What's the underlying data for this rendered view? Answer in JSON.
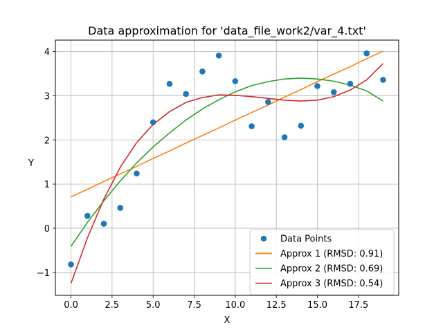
{
  "chart_data": {
    "type": "scatter",
    "title": "Data approximation for 'data_file_work2/var_4.txt'",
    "xlabel": "X",
    "ylabel": "Y",
    "xlim": [
      -0.95,
      19.95
    ],
    "ylim": [
      -1.52,
      4.26
    ],
    "grid": true,
    "legend_position": "lower-right",
    "x_ticks": [
      0.0,
      2.5,
      5.0,
      7.5,
      10.0,
      12.5,
      15.0,
      17.5
    ],
    "x_tick_labels": [
      "0.0",
      "2.5",
      "5.0",
      "7.5",
      "10.0",
      "12.5",
      "15.0",
      "17.5"
    ],
    "y_ticks": [
      -1,
      0,
      1,
      2,
      3,
      4
    ],
    "y_tick_labels": [
      "−1",
      "0",
      "1",
      "2",
      "3",
      "4"
    ],
    "series": [
      {
        "name": "Data Points",
        "kind": "scatter",
        "color": "#1f77b4",
        "x": [
          0,
          1,
          2,
          3,
          4,
          5,
          6,
          7,
          8,
          9,
          10,
          11,
          12,
          13,
          14,
          15,
          16,
          17,
          18,
          19
        ],
        "y": [
          -0.82,
          0.28,
          0.1,
          0.46,
          1.24,
          2.4,
          3.27,
          3.04,
          3.55,
          3.91,
          3.33,
          2.31,
          2.86,
          2.06,
          2.32,
          3.22,
          3.08,
          3.27,
          3.96,
          3.36
        ]
      },
      {
        "name": "Approx 1 (RMSD: 0.91)",
        "kind": "line",
        "color": "#ff7f0e",
        "x": [
          0,
          1,
          2,
          3,
          4,
          5,
          6,
          7,
          8,
          9,
          10,
          11,
          12,
          13,
          14,
          15,
          16,
          17,
          18,
          19
        ],
        "y": [
          0.71,
          0.88,
          1.06,
          1.23,
          1.4,
          1.58,
          1.75,
          1.93,
          2.1,
          2.27,
          2.45,
          2.62,
          2.79,
          2.97,
          3.14,
          3.32,
          3.49,
          3.66,
          3.84,
          4.01
        ]
      },
      {
        "name": "Approx 2 (RMSD: 0.69)",
        "kind": "line",
        "color": "#2ca02c",
        "x": [
          0,
          1,
          2,
          3,
          4,
          5,
          6,
          7,
          8,
          9,
          10,
          11,
          12,
          13,
          14,
          15,
          16,
          17,
          18,
          19
        ],
        "y": [
          -0.41,
          0.13,
          0.62,
          1.07,
          1.48,
          1.84,
          2.16,
          2.45,
          2.7,
          2.91,
          3.09,
          3.23,
          3.32,
          3.38,
          3.4,
          3.38,
          3.33,
          3.24,
          3.11,
          2.88
        ]
      },
      {
        "name": "Approx 3 (RMSD: 0.54)",
        "kind": "line",
        "color": "#d62728",
        "x": [
          0,
          1,
          2,
          3,
          4,
          5,
          6,
          7,
          8,
          9,
          10,
          11,
          12,
          13,
          14,
          15,
          16,
          17,
          18,
          19
        ],
        "y": [
          -1.25,
          -0.22,
          0.66,
          1.38,
          1.94,
          2.35,
          2.64,
          2.85,
          2.96,
          3.02,
          3.01,
          2.98,
          2.94,
          2.9,
          2.88,
          2.9,
          2.98,
          3.13,
          3.36,
          3.73
        ]
      }
    ]
  }
}
